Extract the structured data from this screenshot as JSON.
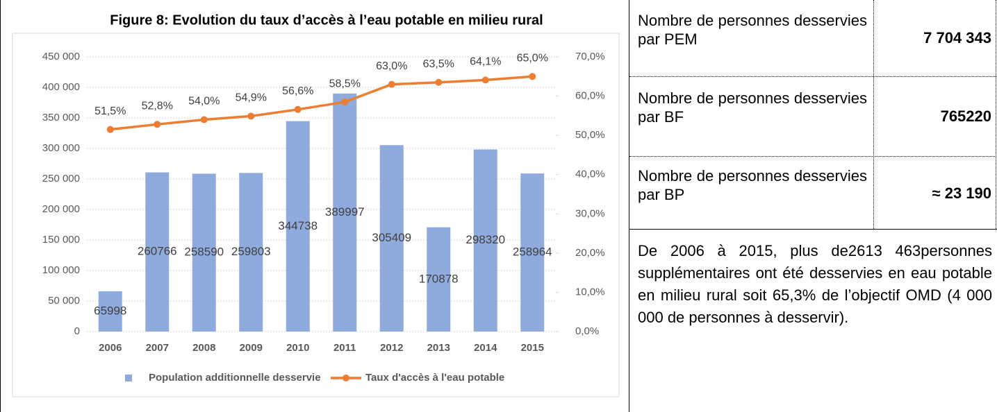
{
  "chart_data": {
    "type": "bar",
    "title": "Figure 8: Evolution du taux d’accès à l’eau potable en milieu rural",
    "categories": [
      "2006",
      "2007",
      "2008",
      "2009",
      "2010",
      "2011",
      "2012",
      "2013",
      "2014",
      "2015"
    ],
    "series": [
      {
        "name": "Population additionnelle desservie",
        "type": "bar",
        "color": "#8faadc",
        "values": [
          65998,
          260766,
          258590,
          259803,
          344738,
          389997,
          305409,
          170878,
          298320,
          258964
        ]
      },
      {
        "name": "Taux d'accès à l'eau potable",
        "type": "line",
        "axis": "y2",
        "color": "#ed7d31",
        "values": [
          51.5,
          52.8,
          54.0,
          54.9,
          56.6,
          58.5,
          63.0,
          63.5,
          64.1,
          65.0
        ],
        "value_labels": [
          "51,5%",
          "52,8%",
          "54,0%",
          "54,9%",
          "56,6%",
          "58,5%",
          "63,0%",
          "63,5%",
          "64,1%",
          "65,0%"
        ]
      }
    ],
    "ylim": [
      0,
      450000
    ],
    "yticks": [
      0,
      {
        "value": 50000,
        "label": "50 000"
      },
      {
        "value": 100000,
        "label": "100 000"
      },
      {
        "value": 150000,
        "label": "150 000"
      },
      {
        "value": 200000,
        "label": "200 000"
      },
      {
        "value": 250000,
        "label": "250 000"
      },
      {
        "value": 300000,
        "label": "300 000"
      },
      {
        "value": 350000,
        "label": "350 000"
      },
      {
        "value": 400000,
        "label": "400 000"
      },
      {
        "value": 450000,
        "label": "450 000"
      }
    ],
    "y2lim": [
      0,
      70
    ],
    "y2ticks": [
      {
        "value": 0,
        "label": "0,0%"
      },
      {
        "value": 10,
        "label": "10,0%"
      },
      {
        "value": 20,
        "label": "20,0%"
      },
      {
        "value": 30,
        "label": "30,0%"
      },
      {
        "value": 40,
        "label": "40,0%"
      },
      {
        "value": 50,
        "label": "50,0%"
      },
      {
        "value": 60,
        "label": "60,0%"
      },
      {
        "value": 70,
        "label": "70,0%"
      }
    ],
    "grid": true,
    "legend": "bottom"
  },
  "table": {
    "rows": [
      [
        "Nombre de personnes desservies par PEM",
        "7 704 343"
      ],
      [
        "Nombre de personnes desservies par BF",
        "765220"
      ],
      [
        "Nombre de personnes desservies par BP",
        "≈ 23 190"
      ]
    ]
  },
  "note": "De 2006 à 2015, plus de2613 463personnes supplémentaires ont été desservies en eau potable en milieu rural soit 65,3% de l’objectif OMD (4 000 000 de personnes à desservir)."
}
